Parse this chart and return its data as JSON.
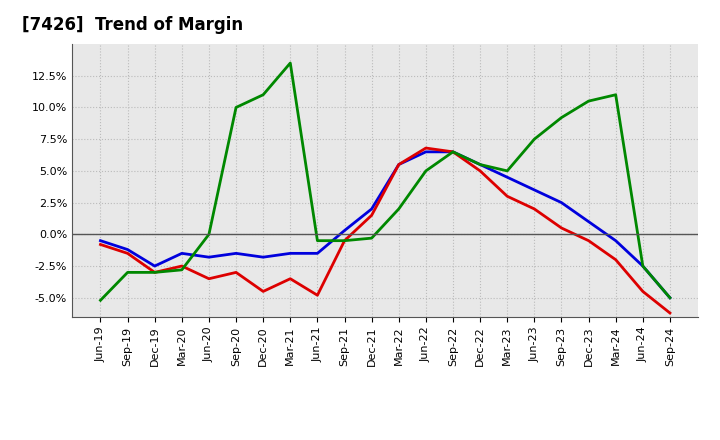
{
  "title": "[7426]  Trend of Margin",
  "x_labels": [
    "Jun-19",
    "Sep-19",
    "Dec-19",
    "Mar-20",
    "Jun-20",
    "Sep-20",
    "Dec-20",
    "Mar-21",
    "Jun-21",
    "Sep-21",
    "Dec-21",
    "Mar-22",
    "Jun-22",
    "Sep-22",
    "Dec-22",
    "Mar-23",
    "Jun-23",
    "Sep-23",
    "Dec-23",
    "Mar-24",
    "Jun-24",
    "Sep-24"
  ],
  "ordinary_income": [
    -0.5,
    -1.2,
    -2.5,
    -1.5,
    -1.8,
    -1.5,
    -1.8,
    -1.5,
    -1.5,
    0.3,
    2.0,
    5.5,
    6.5,
    6.5,
    5.5,
    4.5,
    3.5,
    2.5,
    1.0,
    -0.5,
    -2.5,
    -5.0
  ],
  "net_income": [
    -0.8,
    -1.5,
    -3.0,
    -2.5,
    -3.5,
    -3.0,
    -4.5,
    -3.5,
    -4.8,
    -0.5,
    1.5,
    5.5,
    6.8,
    6.5,
    5.0,
    3.0,
    2.0,
    0.5,
    -0.5,
    -2.0,
    -4.5,
    -6.2
  ],
  "operating_cashflow": [
    -5.2,
    -3.0,
    -3.0,
    -2.8,
    0.0,
    10.0,
    11.0,
    13.5,
    -0.5,
    -0.5,
    -0.3,
    2.0,
    5.0,
    6.5,
    5.5,
    5.0,
    7.5,
    9.2,
    10.5,
    11.0,
    -2.5,
    -5.0
  ],
  "line_color_oi": "#0000dd",
  "line_color_ni": "#dd0000",
  "line_color_ocf": "#008800",
  "ylim": [
    -6.5,
    15.0
  ],
  "yticks": [
    -5.0,
    -2.5,
    0.0,
    2.5,
    5.0,
    7.5,
    10.0,
    12.5
  ],
  "background_color": "#ffffff",
  "plot_bg_color": "#e8e8e8",
  "grid_color": "#bbbbbb",
  "title_fontsize": 12,
  "tick_fontsize": 8
}
